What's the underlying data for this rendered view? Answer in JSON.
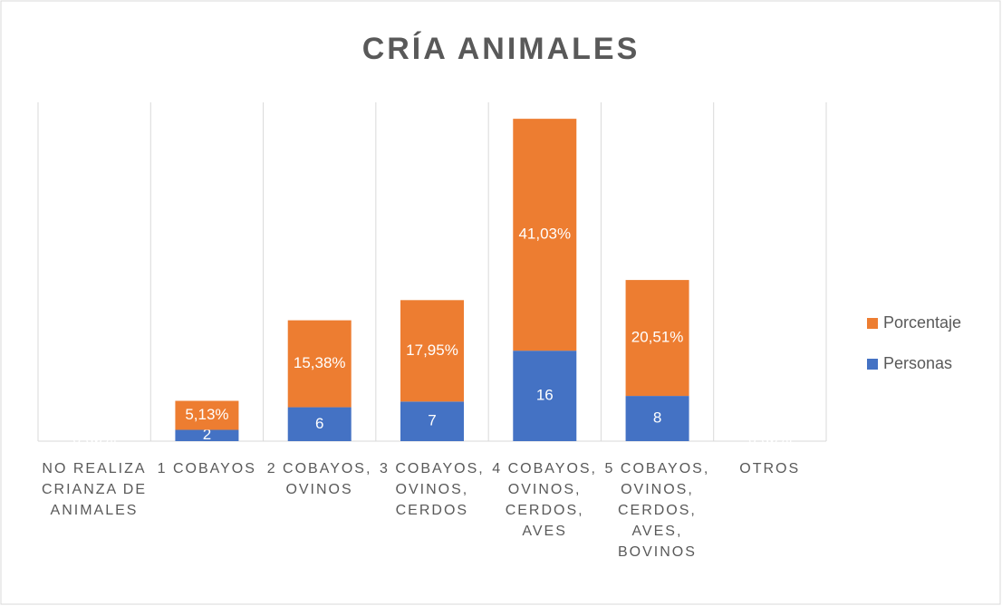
{
  "chart_data": {
    "type": "stacked_bar",
    "title": "CRÍA ANIMALES",
    "categories": [
      "NO REALIZA CRIANZA DE ANIMALES",
      "1 COBAYOS",
      "2 COBAYOS, OVINOS",
      "3 COBAYOS, OVINOS, CERDOS",
      "4 COBAYOS, OVINOS, CERDOS, AVES",
      "5 COBAYOS, OVINOS, CERDOS, AVES, BOVINOS",
      "OTROS"
    ],
    "series": [
      {
        "name": "Personas",
        "color": "#4472c4",
        "values": [
          0,
          2,
          6,
          7,
          16,
          8,
          0
        ],
        "value_labels": [
          "0",
          "2",
          "6",
          "7",
          "16",
          "8",
          "0"
        ]
      },
      {
        "name": "Porcentaje",
        "color": "#ed7d31",
        "values": [
          0,
          5.13,
          15.38,
          17.95,
          41.03,
          20.51,
          0
        ],
        "value_labels": [
          "0,00%",
          "5,13%",
          "15,38%",
          "17,95%",
          "41,03%",
          "20,51%",
          "0,00%"
        ]
      }
    ],
    "ylim": [
      0,
      60
    ],
    "legend": "right"
  }
}
